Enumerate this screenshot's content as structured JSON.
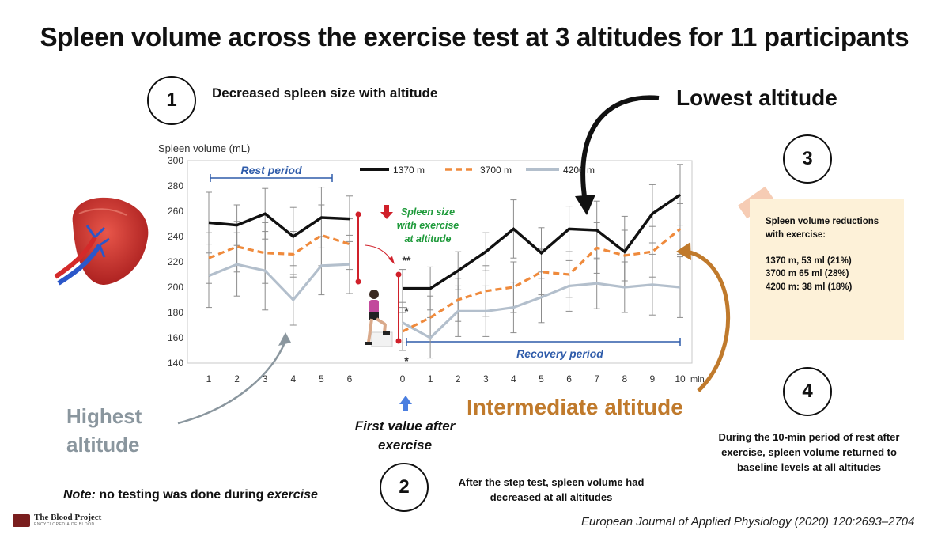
{
  "header": {
    "title": "Spleen volume across the exercise test at 3 altitudes for 11 participants"
  },
  "callouts": {
    "c1_num": "1",
    "c1_text": "Decreased spleen size with altitude",
    "c2_num": "2",
    "c2_text": "After the step test, spleen volume had decreased at all altitudes",
    "c3_num": "3",
    "c3_text": "Spleen volume reductions with exercise:\n\n1370 m, 53 ml (21%)\n3700 m 65 ml (28%)\n4200 m: 38 ml (18%)",
    "c4_num": "4",
    "c4_text": "During the 10-min period of rest after exercise, spleen  volume returned to baseline levels at all altitudes"
  },
  "labels": {
    "lowest": "Lowest altitude",
    "highest": "Highest altitude",
    "intermediate": "Intermediate altitude",
    "first_value": "First value after exercise",
    "note_prefix": "Note:",
    "note_mid": " no testing was done ",
    "note_during": "during ",
    "note_suffix": "exercise",
    "logo_name": "The Blood Project",
    "logo_sub": "ENCYCLOPEDIA OF BLOOD",
    "citation": "European Journal of Applied Physiology (2020) 120:2693–2704"
  },
  "colors": {
    "s1370": "#111111",
    "s3700": "#ef8a3c",
    "s4200": "#b3bfcc",
    "rest_blue": "#2f5caa",
    "red": "#d0202a",
    "green": "#1e9a3a"
  },
  "chart_data": {
    "type": "line",
    "ylabel": "Spleen volume (mL)",
    "ylim": [
      140,
      300
    ],
    "yticks": [
      140,
      160,
      180,
      200,
      220,
      240,
      260,
      280,
      300
    ],
    "x_rest": [
      "1",
      "2",
      "3",
      "4",
      "5",
      "6"
    ],
    "x_recovery": [
      "0",
      "1",
      "2",
      "3",
      "4",
      "5",
      "6",
      "7",
      "8",
      "9",
      "10"
    ],
    "x_unit": "min",
    "rest_label": "Rest period",
    "recovery_label": "Recovery period",
    "exercise_annotation": "Spleen size with exercise at altitude",
    "significance": [
      "**",
      "*",
      "*"
    ],
    "legend_position": "top-right",
    "series": [
      {
        "name": "1370 m",
        "style": "solid",
        "color": "#111111",
        "rest": [
          251,
          249,
          258,
          240,
          255,
          254
        ],
        "rest_err": [
          24,
          16,
          20,
          23,
          24,
          18
        ],
        "recovery": [
          199,
          199,
          213,
          228,
          246,
          227,
          246,
          245,
          228,
          258,
          273
        ],
        "recovery_err": [
          15,
          17,
          15,
          15,
          23,
          20,
          18,
          23,
          28,
          23,
          24
        ]
      },
      {
        "name": "3700 m",
        "style": "dashed",
        "color": "#ef8a3c",
        "rest": [
          223,
          232,
          227,
          226,
          241,
          234
        ],
        "rest_err": [
          20,
          20,
          24,
          18,
          24,
          20
        ],
        "recovery": [
          165,
          176,
          190,
          197,
          200,
          212,
          210,
          231,
          225,
          228,
          246
        ],
        "recovery_err": [
          15,
          17,
          17,
          20,
          20,
          18,
          18,
          20,
          20,
          20,
          20
        ]
      },
      {
        "name": "4200 m",
        "style": "solid",
        "color": "#b3bfcc",
        "rest": [
          209,
          218,
          213,
          190,
          217,
          218
        ],
        "rest_err": [
          25,
          25,
          31,
          20,
          23,
          23
        ],
        "recovery": [
          172,
          160,
          181,
          181,
          184,
          192,
          201,
          203,
          200,
          202,
          200
        ],
        "recovery_err": [
          16,
          16,
          20,
          20,
          20,
          20,
          20,
          20,
          20,
          24,
          24
        ]
      }
    ]
  }
}
